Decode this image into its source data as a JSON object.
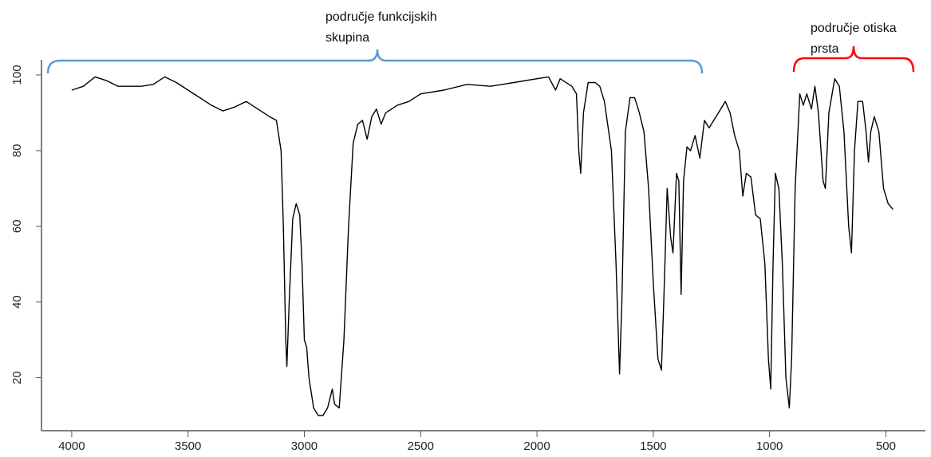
{
  "chart_data": {
    "type": "line",
    "x": [
      4000,
      3950,
      3900,
      3850,
      3800,
      3700,
      3650,
      3600,
      3550,
      3500,
      3450,
      3400,
      3350,
      3300,
      3250,
      3200,
      3150,
      3120,
      3100,
      3090,
      3080,
      3075,
      3065,
      3050,
      3035,
      3020,
      3010,
      3000,
      2990,
      2980,
      2960,
      2940,
      2920,
      2900,
      2880,
      2870,
      2850,
      2830,
      2810,
      2790,
      2770,
      2750,
      2730,
      2710,
      2690,
      2670,
      2650,
      2600,
      2550,
      2500,
      2400,
      2300,
      2200,
      2100,
      2000,
      1950,
      1920,
      1900,
      1850,
      1830,
      1820,
      1812,
      1800,
      1780,
      1750,
      1730,
      1710,
      1680,
      1660,
      1645,
      1635,
      1620,
      1600,
      1580,
      1560,
      1540,
      1520,
      1500,
      1480,
      1465,
      1455,
      1440,
      1425,
      1415,
      1400,
      1390,
      1380,
      1370,
      1355,
      1340,
      1320,
      1300,
      1280,
      1260,
      1240,
      1210,
      1190,
      1170,
      1150,
      1130,
      1115,
      1100,
      1080,
      1060,
      1040,
      1020,
      1005,
      995,
      985,
      975,
      960,
      945,
      930,
      915,
      905,
      890,
      870,
      855,
      840,
      820,
      805,
      790,
      770,
      760,
      745,
      720,
      700,
      680,
      660,
      648,
      635,
      620,
      600,
      585,
      575,
      565,
      550,
      530,
      510,
      490,
      470
    ],
    "values": [
      96,
      97,
      99.5,
      98.5,
      97,
      97,
      97.5,
      99.5,
      98,
      96,
      94,
      92,
      90.5,
      91.5,
      93,
      91,
      89,
      88,
      80,
      60,
      30,
      23,
      40,
      62,
      66,
      63,
      50,
      30,
      28,
      20,
      12,
      10,
      10,
      12,
      17,
      13,
      12,
      30,
      60,
      82,
      87,
      88,
      83,
      89,
      91,
      87,
      90,
      92,
      93,
      95,
      96,
      97.5,
      97,
      98,
      99,
      99.5,
      96,
      99,
      97,
      95,
      80,
      74,
      90,
      98,
      98,
      97,
      93,
      80,
      50,
      21,
      40,
      85,
      94,
      94,
      90,
      85,
      70,
      45,
      25,
      22,
      40,
      70,
      57,
      53,
      74,
      72,
      42,
      72,
      81,
      80,
      84,
      78,
      88,
      86,
      88,
      91,
      93,
      90,
      84,
      80,
      68,
      74,
      73,
      63,
      62,
      50,
      25,
      17,
      50,
      74,
      70,
      50,
      20,
      12,
      25,
      70,
      95,
      92,
      95,
      91,
      97,
      90,
      72,
      70,
      90,
      99,
      97,
      85,
      60,
      53,
      80,
      93,
      93,
      85,
      77,
      85,
      89,
      85,
      70,
      66,
      64.5
    ],
    "color": "#000000",
    "xlim": [
      4130,
      330
    ],
    "ylim": [
      6,
      104
    ],
    "xticks": [
      4000,
      3500,
      3000,
      2500,
      2000,
      1500,
      1000,
      500
    ],
    "yticks": [
      20,
      40,
      60,
      80,
      100
    ],
    "annotations": [
      {
        "text": [
          "područje funkcijskih",
          "skupina"
        ],
        "color": "#5b9bd5"
      },
      {
        "text": [
          "područje otiska",
          "prsta"
        ],
        "color": "#ff0000"
      }
    ]
  }
}
